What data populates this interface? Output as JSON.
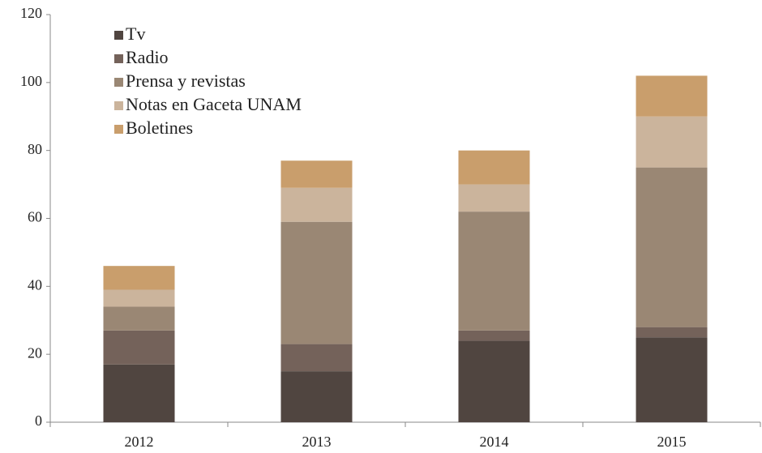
{
  "chart_data": {
    "type": "stacked_bar",
    "categories": [
      "2012",
      "2013",
      "2014",
      "2015"
    ],
    "series": [
      {
        "name": "Tv",
        "color": "#504540",
        "values": [
          17,
          15,
          24,
          25
        ]
      },
      {
        "name": "Radio",
        "color": "#74625a",
        "values": [
          10,
          8,
          3,
          3
        ]
      },
      {
        "name": "Prensa y revistas",
        "color": "#9a8774",
        "values": [
          7,
          36,
          35,
          47
        ]
      },
      {
        "name": "Notas en Gaceta UNAM",
        "color": "#cbb49c",
        "values": [
          5,
          10,
          8,
          15
        ]
      },
      {
        "name": "Boletines",
        "color": "#c99e6c",
        "values": [
          7,
          8,
          10,
          12
        ]
      }
    ],
    "ylim": [
      0,
      120
    ],
    "yticks": [
      0,
      20,
      40,
      60,
      80,
      100,
      120
    ],
    "legend": "upper left"
  }
}
